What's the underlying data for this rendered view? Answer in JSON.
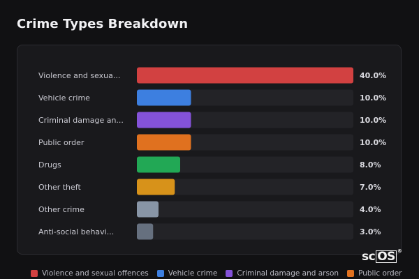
{
  "title": "Crime Types Breakdown",
  "watermark": {
    "sc": "sc",
    "os": "OS",
    "reg": "®"
  },
  "chart_data": {
    "type": "bar",
    "orientation": "horizontal",
    "categories": [
      "Violence and sexua...",
      "Vehicle crime",
      "Criminal damage an...",
      "Public order",
      "Drugs",
      "Other theft",
      "Other crime",
      "Anti-social behavi..."
    ],
    "values": [
      40.0,
      10.0,
      10.0,
      10.0,
      8.0,
      7.0,
      4.0,
      3.0
    ],
    "value_labels": [
      "40.0%",
      "10.0%",
      "10.0%",
      "10.0%",
      "8.0%",
      "7.0%",
      "4.0%",
      "3.0%"
    ],
    "colors": [
      "#d24141",
      "#3d7fe0",
      "#8452d9",
      "#e0711f",
      "#22a855",
      "#d7921a",
      "#8895a6",
      "#66707f"
    ],
    "xlim": [
      0,
      40
    ],
    "legend_position": "bottom",
    "legend": [
      {
        "label": "Violence and sexual offences",
        "color": "#d24141"
      },
      {
        "label": "Vehicle crime",
        "color": "#3d7fe0"
      },
      {
        "label": "Criminal damage and arson",
        "color": "#8452d9"
      },
      {
        "label": "Public order",
        "color": "#e0711f"
      }
    ]
  }
}
